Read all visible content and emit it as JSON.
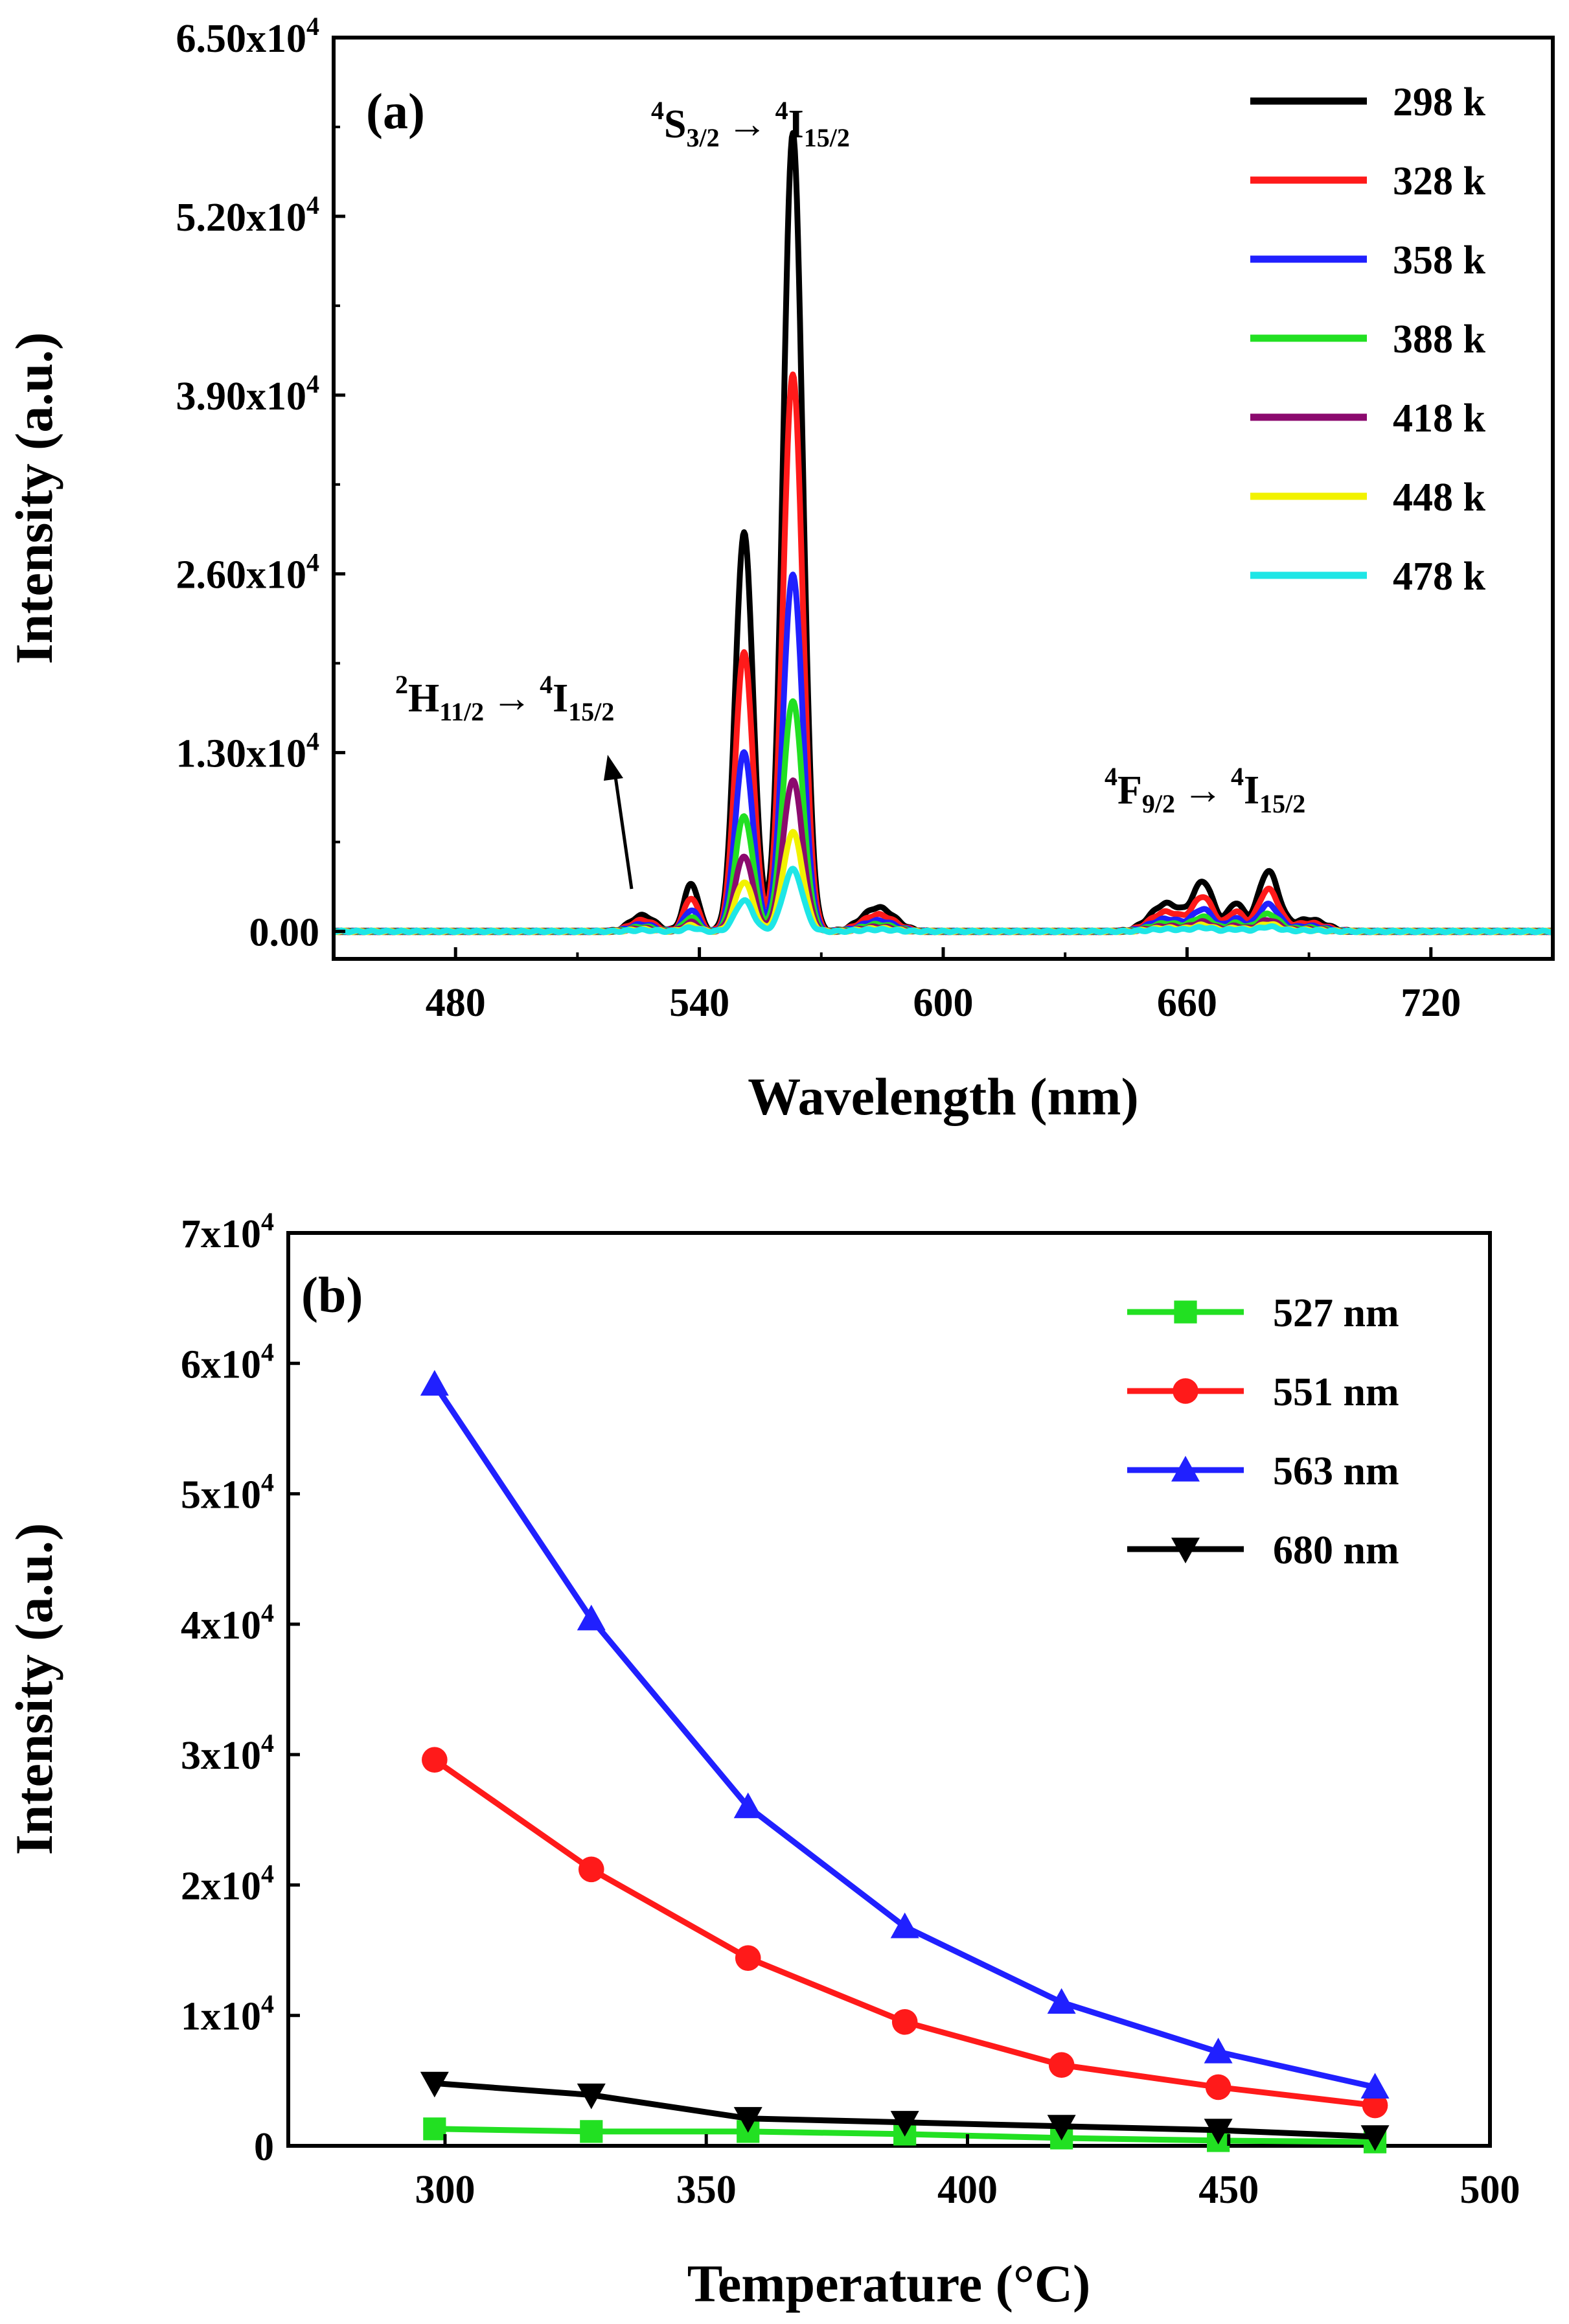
{
  "chart_data": [
    {
      "panel_label": "(a)",
      "type": "line",
      "xlabel": "Wavelength (nm)",
      "ylabel": "Intensity (a.u.)",
      "xlim": [
        450,
        750
      ],
      "ylim": [
        -2000,
        65000
      ],
      "x_ticks": [
        480,
        540,
        600,
        660,
        720
      ],
      "x_tick_labels": [
        "480",
        "540",
        "600",
        "660",
        "720"
      ],
      "y_ticks": [
        0,
        13000,
        26000,
        39000,
        52000,
        65000
      ],
      "y_tick_labels": [
        {
          "base": "0.00",
          "exp": ""
        },
        {
          "base": "1.30x10",
          "exp": "4"
        },
        {
          "base": "2.60x10",
          "exp": "4"
        },
        {
          "base": "3.90x10",
          "exp": "4"
        },
        {
          "base": "5.20x10",
          "exp": "4"
        },
        {
          "base": "6.50x10",
          "exp": "4"
        }
      ],
      "peak_shape": [
        {
          "center": 526,
          "width": 3,
          "fraction": 0.02
        },
        {
          "center": 538,
          "width": 1.8,
          "fraction": 0.06
        },
        {
          "center": 551,
          "width": 2.2,
          "fraction": 0.5
        },
        {
          "center": 563,
          "width": 2.4,
          "fraction": 1.0
        },
        {
          "center": 584,
          "width": 4,
          "fraction": 0.03
        },
        {
          "center": 655,
          "width": 4,
          "fraction": 0.035
        },
        {
          "center": 664,
          "width": 2.5,
          "fraction": 0.06
        },
        {
          "center": 672,
          "width": 2,
          "fraction": 0.035
        },
        {
          "center": 680,
          "width": 2.5,
          "fraction": 0.075
        },
        {
          "center": 690,
          "width": 4,
          "fraction": 0.015
        }
      ],
      "series": [
        {
          "name": "298 k",
          "color": "#000000",
          "peak_563": 58000
        },
        {
          "name": "328 k",
          "color": "#ff1a1a",
          "peak_563": 40500
        },
        {
          "name": "358 k",
          "color": "#2020ff",
          "peak_563": 26000
        },
        {
          "name": "388 k",
          "color": "#22e022",
          "peak_563": 16800
        },
        {
          "name": "418 k",
          "color": "#8b0a6e",
          "peak_563": 11000
        },
        {
          "name": "448 k",
          "color": "#f2f200",
          "peak_563": 7200
        },
        {
          "name": "478 k",
          "color": "#1ee6e6",
          "peak_563": 4500
        }
      ],
      "annotations": [
        {
          "base1": "4",
          "lvl1": "S",
          "sub1": "3/2",
          "arrow": "→",
          "base2": "4",
          "lvl2": "I",
          "sub2": "15/2"
        },
        {
          "base1": "2",
          "lvl1": "H",
          "sub1": "11/2",
          "arrow": "→",
          "base2": "4",
          "lvl2": "I",
          "sub2": "15/2"
        },
        {
          "base1": "4",
          "lvl1": "F",
          "sub1": "9/2",
          "arrow": "→",
          "base2": "4",
          "lvl2": "I",
          "sub2": "15/2"
        }
      ]
    },
    {
      "panel_label": "(b)",
      "type": "line",
      "xlabel": "Temperature (°C)",
      "ylabel": "Intensity (a.u.)",
      "xlim": [
        270,
        500
      ],
      "ylim": [
        0,
        70000
      ],
      "x_ticks": [
        300,
        350,
        400,
        450,
        500
      ],
      "x_tick_labels": [
        "300",
        "350",
        "400",
        "450",
        "500"
      ],
      "y_ticks": [
        0,
        10000,
        20000,
        30000,
        40000,
        50000,
        60000,
        70000
      ],
      "y_tick_labels": [
        {
          "base": "0",
          "exp": ""
        },
        {
          "base": "1x10",
          "exp": "4"
        },
        {
          "base": "2x10",
          "exp": "4"
        },
        {
          "base": "3x10",
          "exp": "4"
        },
        {
          "base": "4x10",
          "exp": "4"
        },
        {
          "base": "5x10",
          "exp": "4"
        },
        {
          "base": "6x10",
          "exp": "4"
        },
        {
          "base": "7x10",
          "exp": "4"
        }
      ],
      "x": [
        298,
        328,
        358,
        388,
        418,
        448,
        478
      ],
      "series": [
        {
          "name": "527 nm",
          "color": "#22e022",
          "marker": "square",
          "values": [
            1300,
            1100,
            1100,
            900,
            600,
            400,
            300
          ]
        },
        {
          "name": "551 nm",
          "color": "#ff1a1a",
          "marker": "circle",
          "values": [
            29600,
            21200,
            14400,
            9500,
            6200,
            4500,
            3100
          ]
        },
        {
          "name": "563 nm",
          "color": "#2020ff",
          "marker": "triangle-up",
          "values": [
            58400,
            40400,
            26000,
            16800,
            11000,
            7200,
            4500
          ]
        },
        {
          "name": "680 nm",
          "color": "#000000",
          "marker": "triangle-down",
          "values": [
            4800,
            3900,
            2100,
            1800,
            1500,
            1200,
            700
          ]
        }
      ]
    }
  ]
}
